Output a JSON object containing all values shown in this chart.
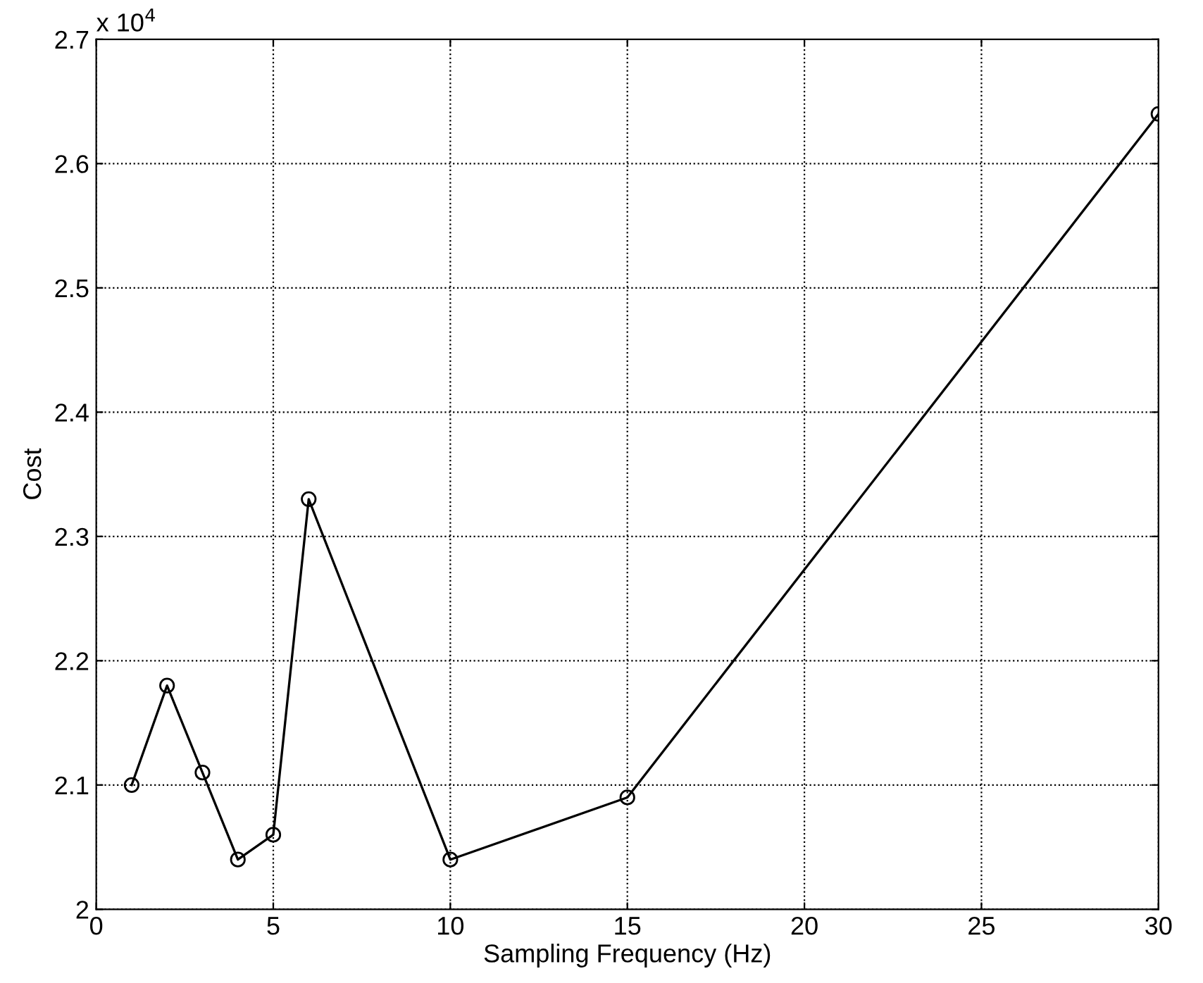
{
  "chart_data": {
    "type": "line",
    "xlabel": "Sampling Frequency (Hz)",
    "ylabel": "Cost",
    "x": [
      1,
      2,
      3,
      4,
      5,
      6,
      10,
      15,
      30
    ],
    "series": [
      {
        "color": "#000000",
        "values": [
          2.1,
          2.18,
          2.11,
          2.04,
          2.06,
          2.33,
          2.04,
          2.09,
          2.64
        ]
      }
    ],
    "xlim": [
      0,
      30
    ],
    "xticks": [
      0,
      5,
      10,
      15,
      20,
      25,
      30
    ],
    "ylim": [
      2,
      2.7
    ],
    "yticks": [
      2,
      2.1,
      2.2,
      2.3,
      2.4,
      2.5,
      2.6,
      2.7
    ],
    "grid": true,
    "marker": "circle",
    "line_style": "solid",
    "annotations": [
      "x 10$^{4}$"
    ]
  }
}
